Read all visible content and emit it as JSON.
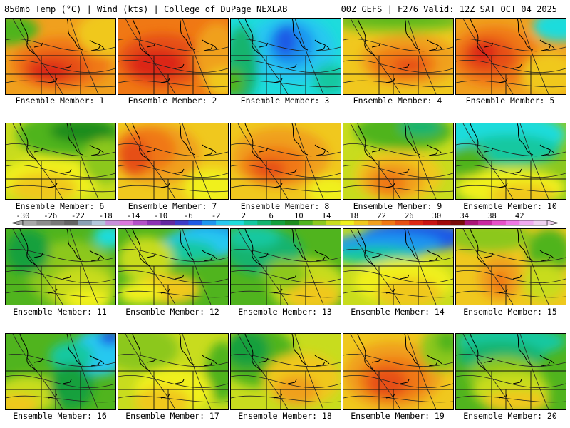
{
  "header": {
    "left": "850mb Temp (°C) | Wind (kts) | College of DuPage NEXLAB",
    "right": "00Z GEFS | F276 Valid: 12Z SAT OCT 04 2025"
  },
  "colorbar": {
    "labels": [
      "-30",
      "-26",
      "-22",
      "-18",
      "-14",
      "-10",
      "-6",
      "-2",
      "2",
      "6",
      "10",
      "14",
      "18",
      "22",
      "26",
      "30",
      "34",
      "38",
      "42"
    ],
    "colors": [
      "#a8a8a8",
      "#8c8c8c",
      "#787878",
      "#646464",
      "#8aa0b4",
      "#b4c8dc",
      "#c890dc",
      "#dc78dc",
      "#b450c8",
      "#8c32b4",
      "#6428a0",
      "#3c3cc8",
      "#1e5ae6",
      "#1e96f0",
      "#28c8f0",
      "#1edcdc",
      "#14c8a0",
      "#14b46e",
      "#14a03c",
      "#1e8c1e",
      "#50b41e",
      "#8cc81e",
      "#c8dc1e",
      "#f0f01e",
      "#f0c81e",
      "#f0a01e",
      "#f07814",
      "#e65014",
      "#dc2814",
      "#c81414",
      "#a00a0a",
      "#780a0a",
      "#aa1478",
      "#c828a0",
      "#e650c8",
      "#f078e6",
      "#f0aaf0",
      "#f0d2f0"
    ]
  },
  "members": [
    {
      "label": "Ensemble Member: 1",
      "bg": "#f0a01e",
      "blobs": [
        [
          "#f07814",
          0.5,
          0.6,
          0.45,
          0.35
        ],
        [
          "#e65014",
          0.45,
          0.65,
          0.3,
          0.22
        ],
        [
          "#dc2814",
          0.4,
          0.7,
          0.18,
          0.12
        ],
        [
          "#50b41e",
          0.05,
          0.15,
          0.25,
          0.2
        ],
        [
          "#f0c81e",
          0.95,
          0.2,
          0.3,
          0.3
        ]
      ]
    },
    {
      "label": "Ensemble Member: 2",
      "bg": "#f07814",
      "blobs": [
        [
          "#e65014",
          0.4,
          0.55,
          0.4,
          0.35
        ],
        [
          "#dc2814",
          0.35,
          0.6,
          0.25,
          0.2
        ],
        [
          "#f0a01e",
          0.9,
          0.5,
          0.2,
          0.45
        ],
        [
          "#f0c81e",
          0.95,
          0.85,
          0.15,
          0.2
        ]
      ]
    },
    {
      "label": "Ensemble Member: 3",
      "bg": "#1edcdc",
      "blobs": [
        [
          "#28c8f0",
          0.55,
          0.4,
          0.4,
          0.45
        ],
        [
          "#1e96f0",
          0.55,
          0.35,
          0.22,
          0.3
        ],
        [
          "#1e5ae6",
          0.5,
          0.3,
          0.1,
          0.2
        ],
        [
          "#14b46e",
          0.1,
          0.6,
          0.15,
          0.5
        ],
        [
          "#50b41e",
          0.02,
          0.85,
          0.1,
          0.2
        ],
        [
          "#14c8a0",
          0.9,
          0.8,
          0.15,
          0.2
        ]
      ]
    },
    {
      "label": "Ensemble Member: 4",
      "bg": "#f0c81e",
      "blobs": [
        [
          "#f0a01e",
          0.6,
          0.55,
          0.45,
          0.35
        ],
        [
          "#f07814",
          0.55,
          0.6,
          0.3,
          0.22
        ],
        [
          "#8cc81e",
          0.5,
          0.05,
          0.6,
          0.15
        ],
        [
          "#50b41e",
          0.5,
          0.0,
          0.6,
          0.08
        ],
        [
          "#e65014",
          0.6,
          0.62,
          0.15,
          0.1
        ]
      ]
    },
    {
      "label": "Ensemble Member: 5",
      "bg": "#f0a01e",
      "blobs": [
        [
          "#f07814",
          0.35,
          0.5,
          0.4,
          0.4
        ],
        [
          "#e65014",
          0.3,
          0.5,
          0.25,
          0.25
        ],
        [
          "#dc2814",
          0.25,
          0.45,
          0.12,
          0.15
        ],
        [
          "#1edcdc",
          0.95,
          0.1,
          0.25,
          0.2
        ],
        [
          "#f0c81e",
          0.85,
          0.75,
          0.25,
          0.3
        ]
      ]
    },
    {
      "label": "Ensemble Member: 6",
      "bg": "#c8dc1e",
      "blobs": [
        [
          "#f0f01e",
          0.4,
          0.75,
          0.45,
          0.3
        ],
        [
          "#f0c81e",
          0.35,
          0.85,
          0.3,
          0.2
        ],
        [
          "#50b41e",
          0.6,
          0.15,
          0.5,
          0.3
        ],
        [
          "#1e8c1e",
          0.7,
          0.1,
          0.3,
          0.15
        ],
        [
          "#8cc81e",
          0.9,
          0.5,
          0.2,
          0.3
        ]
      ]
    },
    {
      "label": "Ensemble Member: 7",
      "bg": "#f0c81e",
      "blobs": [
        [
          "#f0a01e",
          0.35,
          0.4,
          0.4,
          0.4
        ],
        [
          "#f07814",
          0.25,
          0.35,
          0.28,
          0.3
        ],
        [
          "#e65014",
          0.15,
          0.45,
          0.14,
          0.25
        ],
        [
          "#f0f01e",
          0.85,
          0.85,
          0.25,
          0.25
        ]
      ]
    },
    {
      "label": "Ensemble Member: 8",
      "bg": "#f0c81e",
      "blobs": [
        [
          "#f0a01e",
          0.45,
          0.45,
          0.45,
          0.4
        ],
        [
          "#f07814",
          0.4,
          0.55,
          0.3,
          0.25
        ],
        [
          "#e65014",
          0.35,
          0.6,
          0.15,
          0.12
        ],
        [
          "#f0f01e",
          0.9,
          0.9,
          0.2,
          0.2
        ]
      ]
    },
    {
      "label": "Ensemble Member: 9",
      "bg": "#c8dc1e",
      "blobs": [
        [
          "#f0c81e",
          0.5,
          0.7,
          0.4,
          0.35
        ],
        [
          "#f0a01e",
          0.45,
          0.75,
          0.28,
          0.25
        ],
        [
          "#f07814",
          0.42,
          0.78,
          0.15,
          0.15
        ],
        [
          "#50b41e",
          0.55,
          0.1,
          0.45,
          0.25
        ],
        [
          "#14b46e",
          0.7,
          0.05,
          0.2,
          0.12
        ]
      ]
    },
    {
      "label": "Ensemble Member: 10",
      "bg": "#8cc81e",
      "blobs": [
        [
          "#1edcdc",
          0.4,
          0.15,
          0.6,
          0.3
        ],
        [
          "#14c8a0",
          0.5,
          0.35,
          0.45,
          0.2
        ],
        [
          "#f0f01e",
          0.5,
          0.85,
          0.5,
          0.25
        ],
        [
          "#f0c81e",
          0.6,
          0.95,
          0.3,
          0.15
        ],
        [
          "#50b41e",
          0.1,
          0.5,
          0.2,
          0.2
        ]
      ]
    },
    {
      "label": "Ensemble Member: 11",
      "bg": "#50b41e",
      "blobs": [
        [
          "#8cc81e",
          0.6,
          0.6,
          0.4,
          0.45
        ],
        [
          "#c8dc1e",
          0.7,
          0.8,
          0.3,
          0.3
        ],
        [
          "#f0f01e",
          0.75,
          0.95,
          0.2,
          0.15
        ],
        [
          "#14a03c",
          0.2,
          0.3,
          0.2,
          0.3
        ],
        [
          "#1edcdc",
          0.95,
          0.1,
          0.15,
          0.15
        ]
      ]
    },
    {
      "label": "Ensemble Member: 12",
      "bg": "#50b41e",
      "blobs": [
        [
          "#1e96f0",
          0.85,
          0.1,
          0.3,
          0.2
        ],
        [
          "#28c8f0",
          0.75,
          0.2,
          0.35,
          0.2
        ],
        [
          "#14c8a0",
          0.6,
          0.3,
          0.3,
          0.15
        ],
        [
          "#c8dc1e",
          0.25,
          0.4,
          0.25,
          0.3
        ],
        [
          "#f0c81e",
          0.45,
          0.8,
          0.3,
          0.2
        ],
        [
          "#f0f01e",
          0.2,
          0.85,
          0.2,
          0.15
        ]
      ]
    },
    {
      "label": "Ensemble Member: 13",
      "bg": "#50b41e",
      "blobs": [
        [
          "#14b46e",
          0.3,
          0.3,
          0.35,
          0.3
        ],
        [
          "#14c8a0",
          0.2,
          0.1,
          0.25,
          0.15
        ],
        [
          "#c8dc1e",
          0.7,
          0.75,
          0.35,
          0.35
        ],
        [
          "#f0c81e",
          0.75,
          0.9,
          0.25,
          0.2
        ],
        [
          "#8cc81e",
          0.5,
          0.6,
          0.2,
          0.2
        ]
      ]
    },
    {
      "label": "Ensemble Member: 14",
      "bg": "#c8dc1e",
      "blobs": [
        [
          "#1e5ae6",
          0.65,
          0.1,
          0.5,
          0.2
        ],
        [
          "#1e96f0",
          0.4,
          0.2,
          0.5,
          0.15
        ],
        [
          "#14c8a0",
          0.3,
          0.35,
          0.4,
          0.12
        ],
        [
          "#f0f01e",
          0.55,
          0.7,
          0.45,
          0.3
        ],
        [
          "#f0c81e",
          0.6,
          0.85,
          0.3,
          0.2
        ]
      ]
    },
    {
      "label": "Ensemble Member: 15",
      "bg": "#f0c81e",
      "blobs": [
        [
          "#8cc81e",
          0.3,
          0.1,
          0.4,
          0.2
        ],
        [
          "#50b41e",
          0.85,
          0.3,
          0.2,
          0.3
        ],
        [
          "#f0a01e",
          0.4,
          0.65,
          0.2,
          0.3
        ],
        [
          "#f07814",
          0.4,
          0.7,
          0.08,
          0.15
        ],
        [
          "#c8dc1e",
          0.8,
          0.7,
          0.2,
          0.25
        ]
      ]
    },
    {
      "label": "Ensemble Member: 16",
      "bg": "#50b41e",
      "blobs": [
        [
          "#28c8f0",
          0.85,
          0.25,
          0.25,
          0.3
        ],
        [
          "#1e5ae6",
          0.95,
          0.05,
          0.1,
          0.1
        ],
        [
          "#14c8a0",
          0.6,
          0.3,
          0.2,
          0.2
        ],
        [
          "#c8dc1e",
          0.2,
          0.8,
          0.3,
          0.25
        ],
        [
          "#f0c81e",
          0.1,
          0.95,
          0.2,
          0.15
        ],
        [
          "#14a03c",
          0.6,
          0.7,
          0.2,
          0.3
        ]
      ]
    },
    {
      "label": "Ensemble Member: 17",
      "bg": "#c8dc1e",
      "blobs": [
        [
          "#8cc81e",
          0.2,
          0.2,
          0.35,
          0.3
        ],
        [
          "#50b41e",
          0.95,
          0.5,
          0.15,
          0.4
        ],
        [
          "#f0f01e",
          0.5,
          0.75,
          0.35,
          0.3
        ],
        [
          "#f0c81e",
          0.4,
          0.9,
          0.25,
          0.2
        ]
      ]
    },
    {
      "label": "Ensemble Member: 18",
      "bg": "#c8dc1e",
      "blobs": [
        [
          "#50b41e",
          0.25,
          0.3,
          0.35,
          0.4
        ],
        [
          "#14a03c",
          0.15,
          0.2,
          0.2,
          0.25
        ],
        [
          "#f0c81e",
          0.65,
          0.6,
          0.35,
          0.35
        ],
        [
          "#f0a01e",
          0.6,
          0.75,
          0.2,
          0.2
        ]
      ]
    },
    {
      "label": "Ensemble Member: 19",
      "bg": "#f0c81e",
      "blobs": [
        [
          "#f0a01e",
          0.45,
          0.55,
          0.45,
          0.45
        ],
        [
          "#f07814",
          0.45,
          0.6,
          0.32,
          0.3
        ],
        [
          "#e65014",
          0.4,
          0.65,
          0.18,
          0.2
        ],
        [
          "#8cc81e",
          0.9,
          0.2,
          0.2,
          0.3
        ],
        [
          "#50b41e",
          0.95,
          0.1,
          0.1,
          0.15
        ]
      ]
    },
    {
      "label": "Ensemble Member: 20",
      "bg": "#50b41e",
      "blobs": [
        [
          "#14c8a0",
          0.5,
          0.1,
          0.5,
          0.2
        ],
        [
          "#14b46e",
          0.4,
          0.3,
          0.4,
          0.2
        ],
        [
          "#8cc81e",
          0.45,
          0.55,
          0.35,
          0.25
        ],
        [
          "#c8dc1e",
          0.5,
          0.75,
          0.35,
          0.25
        ],
        [
          "#f0c81e",
          0.55,
          0.9,
          0.3,
          0.15
        ]
      ]
    }
  ]
}
